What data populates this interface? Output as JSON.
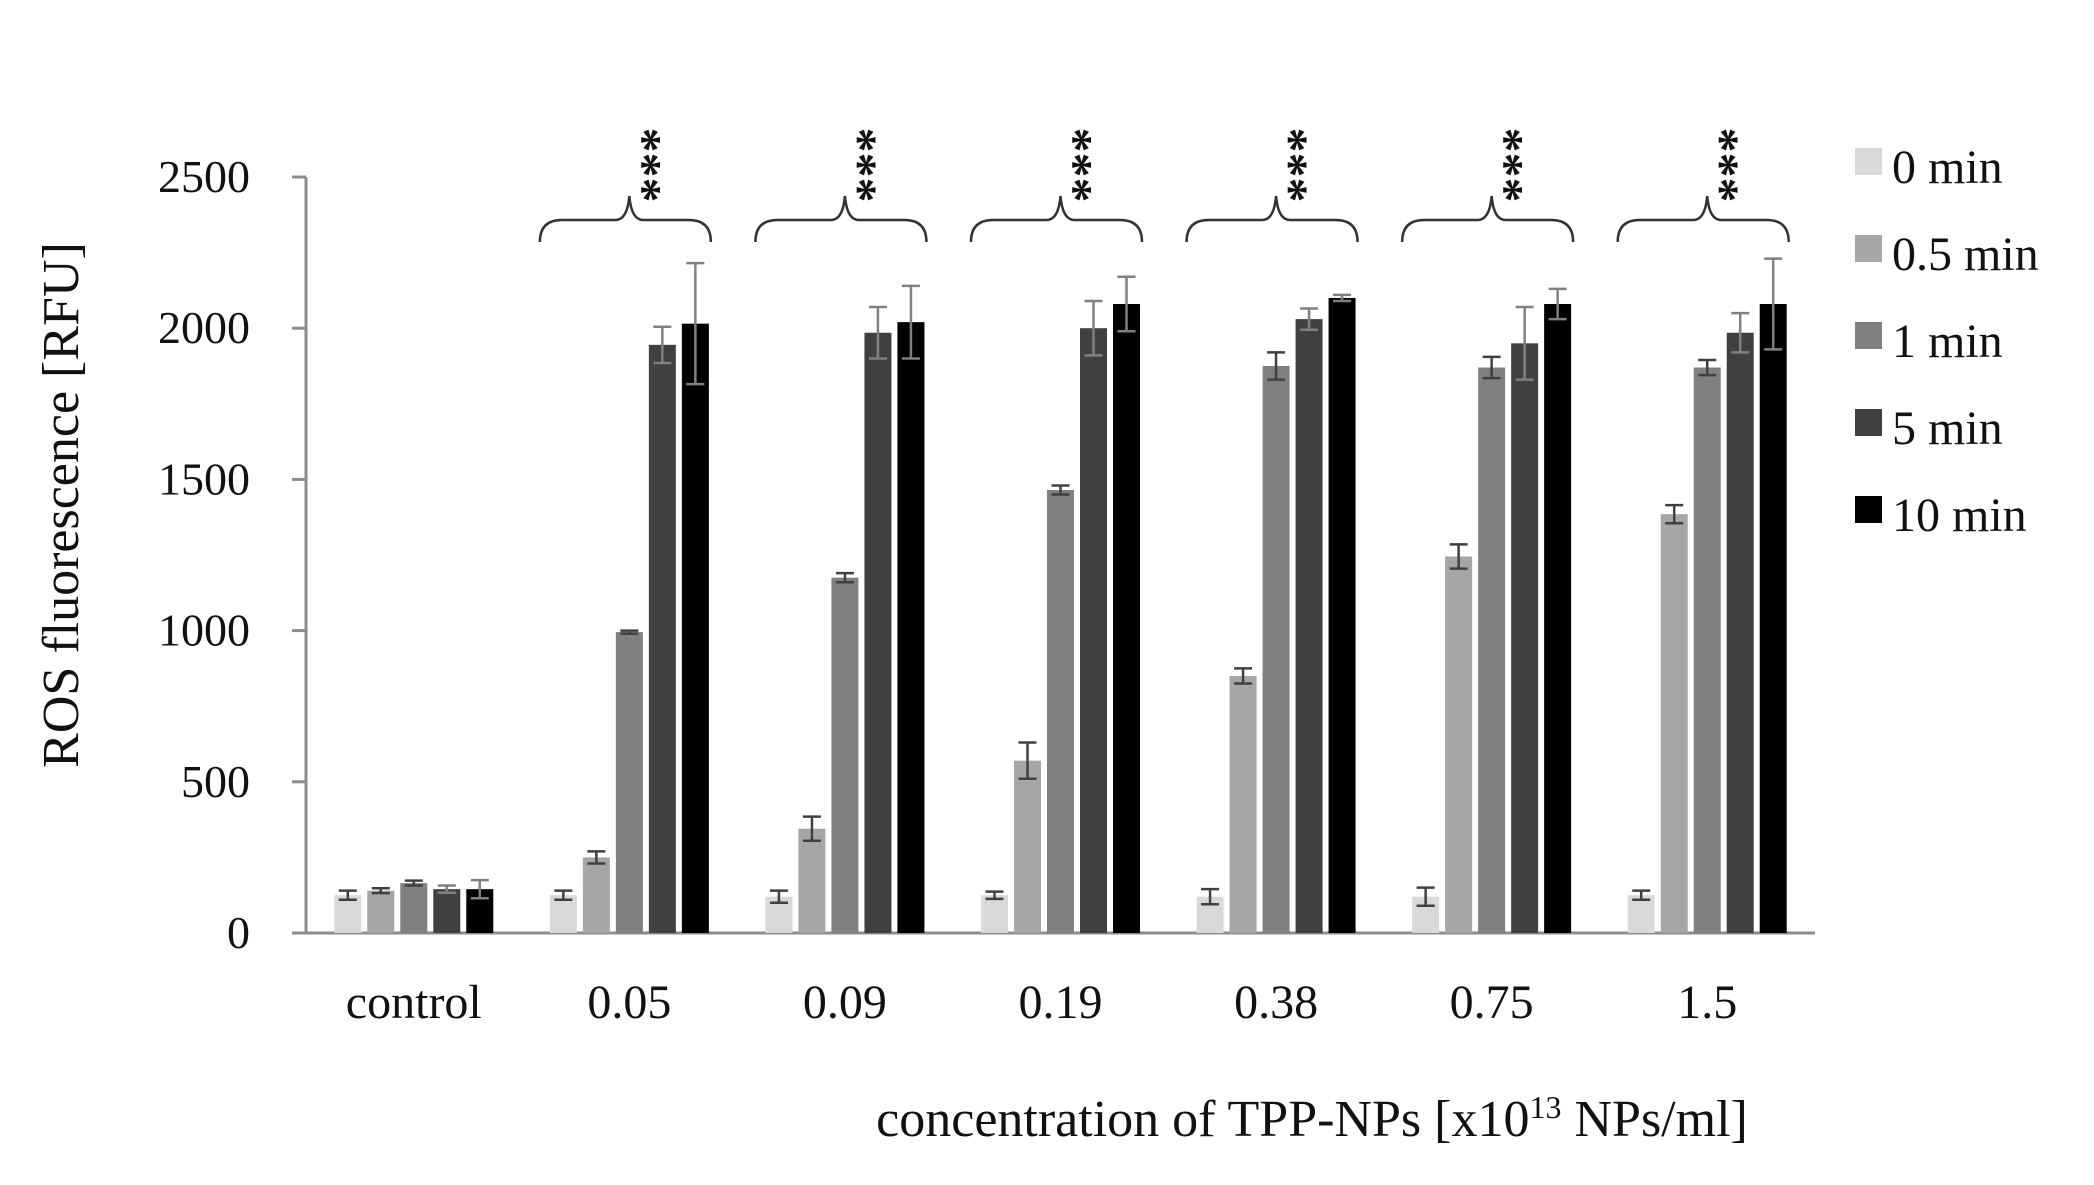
{
  "chart_data": {
    "type": "bar",
    "title": "",
    "ylabel": "ROS fluorescence [RFU]",
    "xlabel_parts": {
      "prefix": "concentration of TPP-NPs [x10",
      "superscript": "13",
      "suffix": " NPs/ml]"
    },
    "ylim": [
      0,
      2500
    ],
    "yticks": [
      0,
      500,
      1000,
      1500,
      2000,
      2500
    ],
    "grid": false,
    "legend_position": "right",
    "categories": [
      "control",
      "0.05",
      "0.09",
      "0.19",
      "0.38",
      "0.75",
      "1.5"
    ],
    "significance": [
      "",
      "***",
      "***",
      "***",
      "***",
      "***",
      "***"
    ],
    "series": [
      {
        "name": "0 min",
        "color": "#d9d9d9",
        "values": [
          125,
          125,
          120,
          125,
          120,
          120,
          125
        ],
        "errors": [
          15,
          15,
          20,
          12,
          25,
          30,
          15
        ]
      },
      {
        "name": "0.5 min",
        "color": "#a6a6a6",
        "values": [
          140,
          250,
          345,
          570,
          850,
          1245,
          1385
        ],
        "errors": [
          8,
          20,
          40,
          60,
          25,
          40,
          30
        ]
      },
      {
        "name": "1 min",
        "color": "#808080",
        "values": [
          165,
          995,
          1175,
          1465,
          1875,
          1870,
          1870
        ],
        "errors": [
          8,
          5,
          15,
          15,
          45,
          35,
          25
        ]
      },
      {
        "name": "5 min",
        "color": "#404040",
        "values": [
          145,
          1945,
          1985,
          2000,
          2030,
          1950,
          1985
        ],
        "errors": [
          12,
          60,
          85,
          90,
          35,
          120,
          65
        ]
      },
      {
        "name": "10 min",
        "color": "#000000",
        "values": [
          145,
          2015,
          2020,
          2080,
          2100,
          2080,
          2080
        ],
        "errors": [
          30,
          200,
          120,
          90,
          10,
          50,
          150
        ]
      }
    ]
  }
}
